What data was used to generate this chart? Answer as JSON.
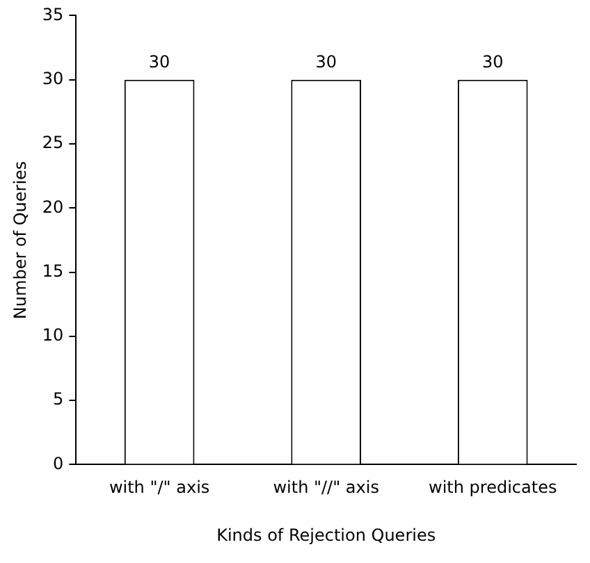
{
  "chart_data": {
    "type": "bar",
    "xlabel": "Kinds of Rejection Queries",
    "ylabel": "Number of Queries",
    "categories": [
      "with \"/\" axis",
      "with \"//\" axis",
      "with predicates"
    ],
    "values": [
      30,
      30,
      30
    ],
    "color": "#ffffff",
    "ylim": [
      0,
      35
    ],
    "yticks": [
      0,
      5,
      10,
      15,
      20,
      25,
      30,
      35
    ],
    "data_labels": true,
    "grid": false,
    "legend": false
  }
}
